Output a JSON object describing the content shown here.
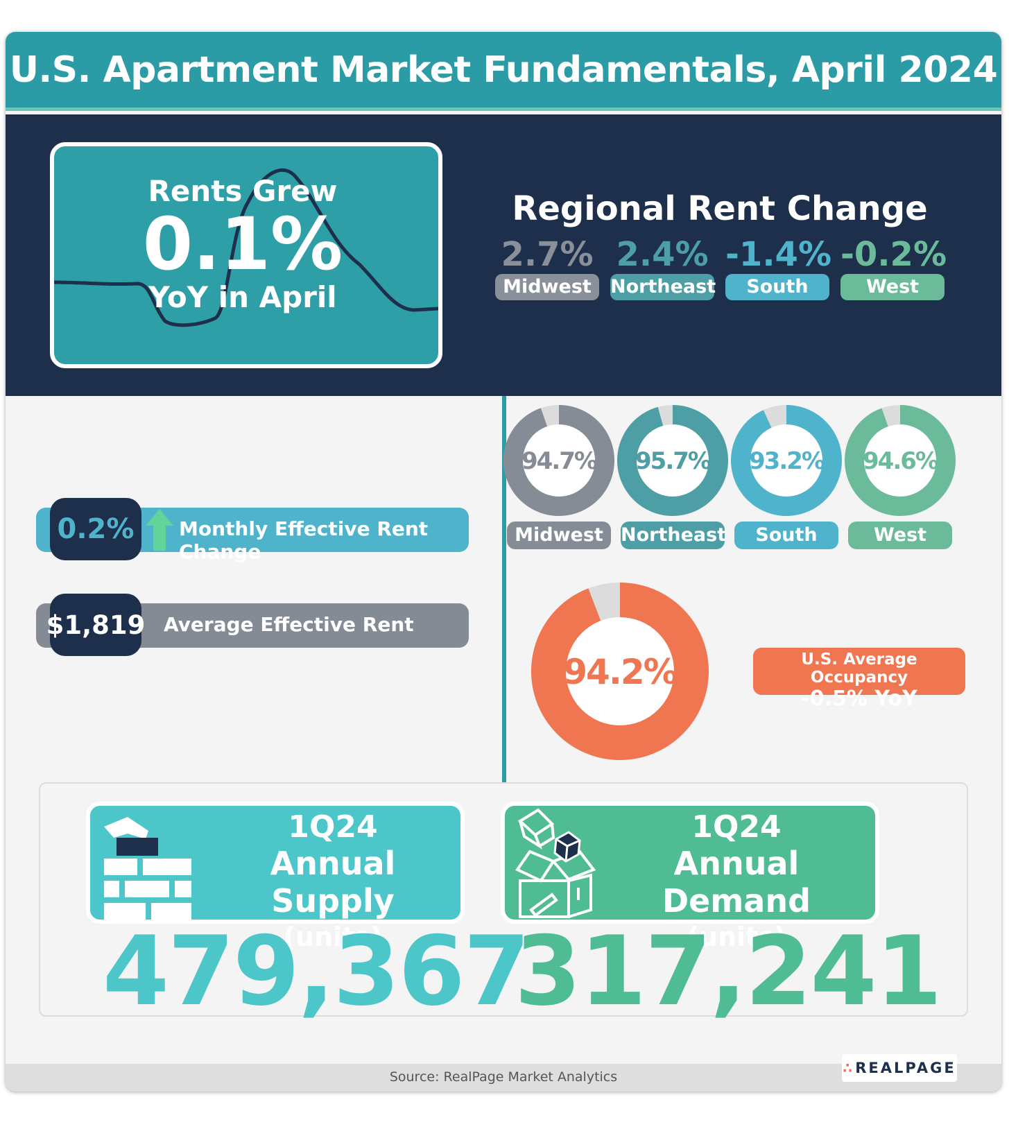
{
  "header": {
    "title": "U.S. Apartment Market Fundamentals, April 2024"
  },
  "rents": {
    "line1": "Rents Grew",
    "value": "0.1%",
    "line3": "YoY in April"
  },
  "regional_rent_change": {
    "title": "Regional Rent Change",
    "regions": [
      {
        "name": "Midwest",
        "value": "2.7%",
        "color": "#8a909a"
      },
      {
        "name": "Northeast",
        "value": "2.4%",
        "color": "#4d9ea5"
      },
      {
        "name": "South",
        "value": "-1.4%",
        "color": "#4fb3cc"
      },
      {
        "name": "West",
        "value": "-0.2%",
        "color": "#6bbb9b"
      }
    ]
  },
  "monthly_rent": {
    "value": "0.2%",
    "label": "Monthly Effective Rent Change",
    "color": "#4fb3cc",
    "arrow_color": "#62d49a"
  },
  "average_rent": {
    "value": "$1,819",
    "label": "Average Effective Rent",
    "color": "#858b95"
  },
  "occupancy": {
    "regions": [
      {
        "name": "Midwest",
        "value": "94.7%",
        "fraction": 0.947,
        "color": "#868c96"
      },
      {
        "name": "Northeast",
        "value": "95.7%",
        "fraction": 0.957,
        "color": "#4d9ea5"
      },
      {
        "name": "South",
        "value": "93.2%",
        "fraction": 0.932,
        "color": "#4fb3cc"
      },
      {
        "name": "West",
        "value": "94.6%",
        "fraction": 0.946,
        "color": "#6bbb9b"
      }
    ],
    "us": {
      "value": "94.2%",
      "fraction": 0.942,
      "color": "#ef7651",
      "label": "U.S. Average Occupancy",
      "change": "-0.5% YoY"
    }
  },
  "supply": {
    "line1": "1Q24",
    "line2": "Annual Supply",
    "line3": "(units)",
    "value": "479,367",
    "color": "#4dc6c9"
  },
  "demand": {
    "line1": "1Q24",
    "line2": "Annual Demand",
    "line3": "(units)",
    "value": "317,241",
    "color": "#4fbc94"
  },
  "footer": {
    "source": "Source: RealPage Market Analytics",
    "logo": "REALPAGE"
  }
}
